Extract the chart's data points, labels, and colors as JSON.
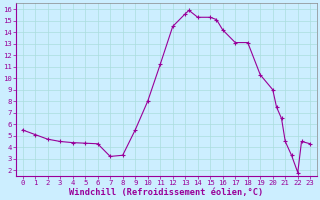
{
  "x": [
    0,
    1,
    2,
    3,
    4,
    5,
    6,
    7,
    8,
    9,
    10,
    11,
    12,
    13,
    13.3,
    14,
    15,
    15.5,
    16,
    17,
    18,
    19,
    20,
    20.3,
    20.7,
    21,
    21.5,
    22,
    22.3,
    23
  ],
  "y": [
    5.5,
    5.1,
    4.7,
    4.5,
    4.4,
    4.35,
    4.3,
    3.2,
    3.3,
    5.5,
    8.0,
    11.2,
    14.5,
    15.6,
    15.9,
    15.3,
    15.3,
    15.1,
    14.2,
    13.1,
    13.1,
    10.3,
    9.0,
    7.5,
    6.5,
    4.5,
    3.3,
    1.8,
    4.5,
    4.3
  ],
  "line_color": "#990099",
  "marker_color": "#990099",
  "bg_color": "#cceeff",
  "grid_color": "#aadddd",
  "xlabel": "Windchill (Refroidissement éolien,°C)",
  "xlim_min": -0.5,
  "xlim_max": 23.5,
  "ylim_min": 1.5,
  "ylim_max": 16.5,
  "xticks": [
    0,
    1,
    2,
    3,
    4,
    5,
    6,
    7,
    8,
    9,
    10,
    11,
    12,
    13,
    14,
    15,
    16,
    17,
    18,
    19,
    20,
    21,
    22,
    23
  ],
  "yticks": [
    2,
    3,
    4,
    5,
    6,
    7,
    8,
    9,
    10,
    11,
    12,
    13,
    14,
    15,
    16
  ],
  "label_fontsize": 6.0,
  "tick_fontsize": 5.2,
  "xlabel_fontsize": 6.2
}
